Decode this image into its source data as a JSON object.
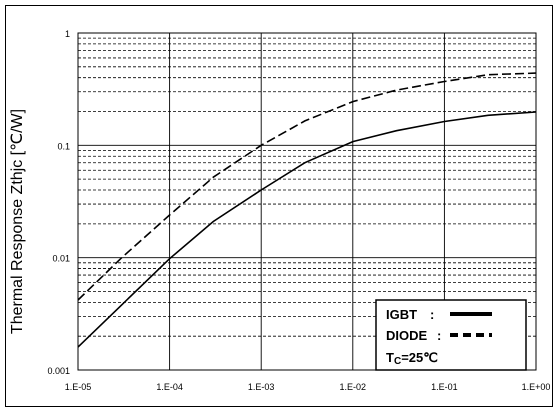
{
  "chart_data": {
    "type": "line",
    "xscale": "log",
    "yscale": "log",
    "xlim": [
      1e-05,
      1
    ],
    "ylim": [
      0.001,
      1
    ],
    "xlabel": "",
    "ylabel": "Thermal Response Zthjc [℃/W]",
    "x_tick_labels": [
      "1.E-05",
      "1.E-04",
      "1.E-03",
      "1.E-02",
      "1.E-01",
      "1.E+00"
    ],
    "y_tick_labels": [
      "1",
      "0.1",
      "0.01",
      "0.001"
    ],
    "grid": true,
    "legend_position": "bottom-right",
    "series": [
      {
        "name": "IGBT",
        "line_style": "solid",
        "x": [
          1e-05,
          3e-05,
          0.0001,
          0.0003,
          0.001,
          0.003,
          0.01,
          0.03,
          0.1,
          0.3,
          1
        ],
        "y": [
          0.0016,
          0.0038,
          0.0098,
          0.021,
          0.04,
          0.07,
          0.108,
          0.135,
          0.163,
          0.185,
          0.198
        ]
      },
      {
        "name": "DIODE",
        "line_style": "dashed",
        "x": [
          1e-05,
          3e-05,
          0.0001,
          0.0003,
          0.001,
          0.003,
          0.01,
          0.03,
          0.1,
          0.3,
          1
        ],
        "y": [
          0.0042,
          0.01,
          0.024,
          0.052,
          0.1,
          0.165,
          0.245,
          0.31,
          0.37,
          0.425,
          0.44
        ]
      }
    ],
    "legend": {
      "entries": [
        {
          "label": "IGBT",
          "separator": ":",
          "style": "solid"
        },
        {
          "label": "DIODE",
          "separator": ":",
          "style": "dashed"
        }
      ],
      "condition": {
        "prefix": "T",
        "subscript": "C",
        "suffix": "=25℃"
      }
    }
  }
}
